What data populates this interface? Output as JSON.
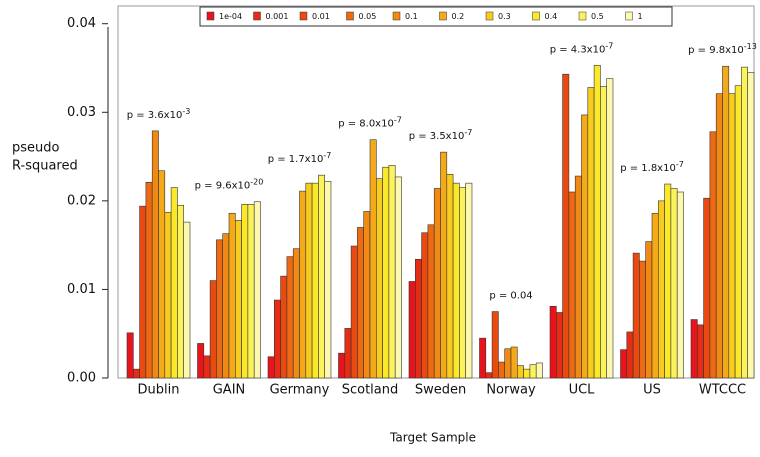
{
  "chart_data": {
    "type": "bar",
    "xlabel": "Target Sample",
    "ylabel": [
      "pseudo",
      "R-squared"
    ],
    "categories": [
      "Dublin",
      "GAIN",
      "Germany",
      "Scotland",
      "Sweden",
      "Norway",
      "UCL",
      "US",
      "WTCCC"
    ],
    "annotations": [
      {
        "text": "p = 3.6x10",
        "sup": "-3"
      },
      {
        "text": "p = 9.6x10",
        "sup": "-20"
      },
      {
        "text": "p = 1.7x10",
        "sup": "-7"
      },
      {
        "text": "p = 8.0x10",
        "sup": "-7"
      },
      {
        "text": "p = 3.5x10",
        "sup": "-7"
      },
      {
        "text": "p = 0.04"
      },
      {
        "text": "p = 4.3x10",
        "sup": "-7"
      },
      {
        "text": "p = 1.8x10",
        "sup": "-7"
      },
      {
        "text": "p = 9.8x10",
        "sup": "-13"
      }
    ],
    "series": [
      {
        "name": "1e-04",
        "color": "#e8141c",
        "values": [
          0.0051,
          0.0039,
          0.0024,
          0.0028,
          0.0109,
          0.0045,
          0.0081,
          0.0032,
          0.0066
        ]
      },
      {
        "name": "0.001",
        "color": "#e62c14",
        "values": [
          0.001,
          0.0025,
          0.0088,
          0.0056,
          0.0134,
          0.0006,
          0.0074,
          0.0052,
          0.006
        ]
      },
      {
        "name": "0.01",
        "color": "#ea4a10",
        "values": [
          0.0194,
          0.011,
          0.0115,
          0.0149,
          0.0164,
          0.0075,
          0.0343,
          0.0141,
          0.0203
        ]
      },
      {
        "name": "0.05",
        "color": "#ee6a12",
        "values": [
          0.0221,
          0.0156,
          0.0137,
          0.017,
          0.0173,
          0.0018,
          0.021,
          0.0132,
          0.0278
        ]
      },
      {
        "name": "0.1",
        "color": "#f08a14",
        "values": [
          0.0279,
          0.0163,
          0.0146,
          0.0188,
          0.0214,
          0.0033,
          0.0228,
          0.0154,
          0.0321
        ]
      },
      {
        "name": "0.2",
        "color": "#f4aa18",
        "values": [
          0.0234,
          0.0186,
          0.0211,
          0.0269,
          0.0255,
          0.0035,
          0.0297,
          0.0186,
          0.0352
        ]
      },
      {
        "name": "0.3",
        "color": "#f8cc1e",
        "values": [
          0.0187,
          0.0178,
          0.022,
          0.0225,
          0.023,
          0.0014,
          0.0328,
          0.02,
          0.0321
        ]
      },
      {
        "name": "0.4",
        "color": "#fbe828",
        "values": [
          0.0215,
          0.0196,
          0.022,
          0.0238,
          0.022,
          0.001,
          0.0353,
          0.0219,
          0.033
        ]
      },
      {
        "name": "0.5",
        "color": "#fcf25c",
        "values": [
          0.0195,
          0.0196,
          0.0229,
          0.024,
          0.0215,
          0.0015,
          0.0329,
          0.0214,
          0.0351
        ]
      },
      {
        "name": "1",
        "color": "#fdf8b0",
        "values": [
          0.0176,
          0.0199,
          0.0222,
          0.0227,
          0.022,
          0.0017,
          0.0338,
          0.021,
          0.0345
        ]
      }
    ],
    "ylim": [
      0,
      0.042
    ],
    "yticks": [
      {
        "value": 0,
        "label": "0.00"
      },
      {
        "value": 0.01,
        "label": "0.01"
      },
      {
        "value": 0.02,
        "label": "0.02"
      },
      {
        "value": 0.03,
        "label": "0.03"
      },
      {
        "value": 0.04,
        "label": "0.04"
      }
    ]
  }
}
